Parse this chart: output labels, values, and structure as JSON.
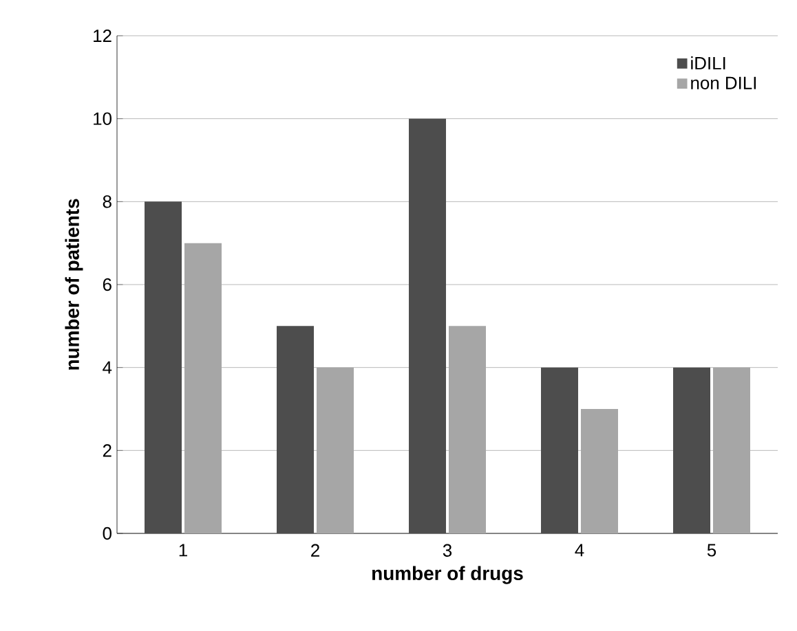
{
  "chart_data": {
    "type": "bar",
    "xlabel": "number of drugs",
    "ylabel": "number of patients",
    "categories": [
      "1",
      "2",
      "3",
      "4",
      "5"
    ],
    "series": [
      {
        "name": "iDILI",
        "color": "#4d4d4d",
        "values": [
          8,
          5,
          10,
          4,
          4
        ]
      },
      {
        "name": "non DILI",
        "color": "#a6a6a6",
        "values": [
          7,
          4,
          5,
          3,
          4
        ]
      }
    ],
    "ylim": [
      0,
      12
    ],
    "yticks": [
      0,
      2,
      4,
      6,
      8,
      10,
      12
    ],
    "grid": "y",
    "legend": "top right"
  }
}
